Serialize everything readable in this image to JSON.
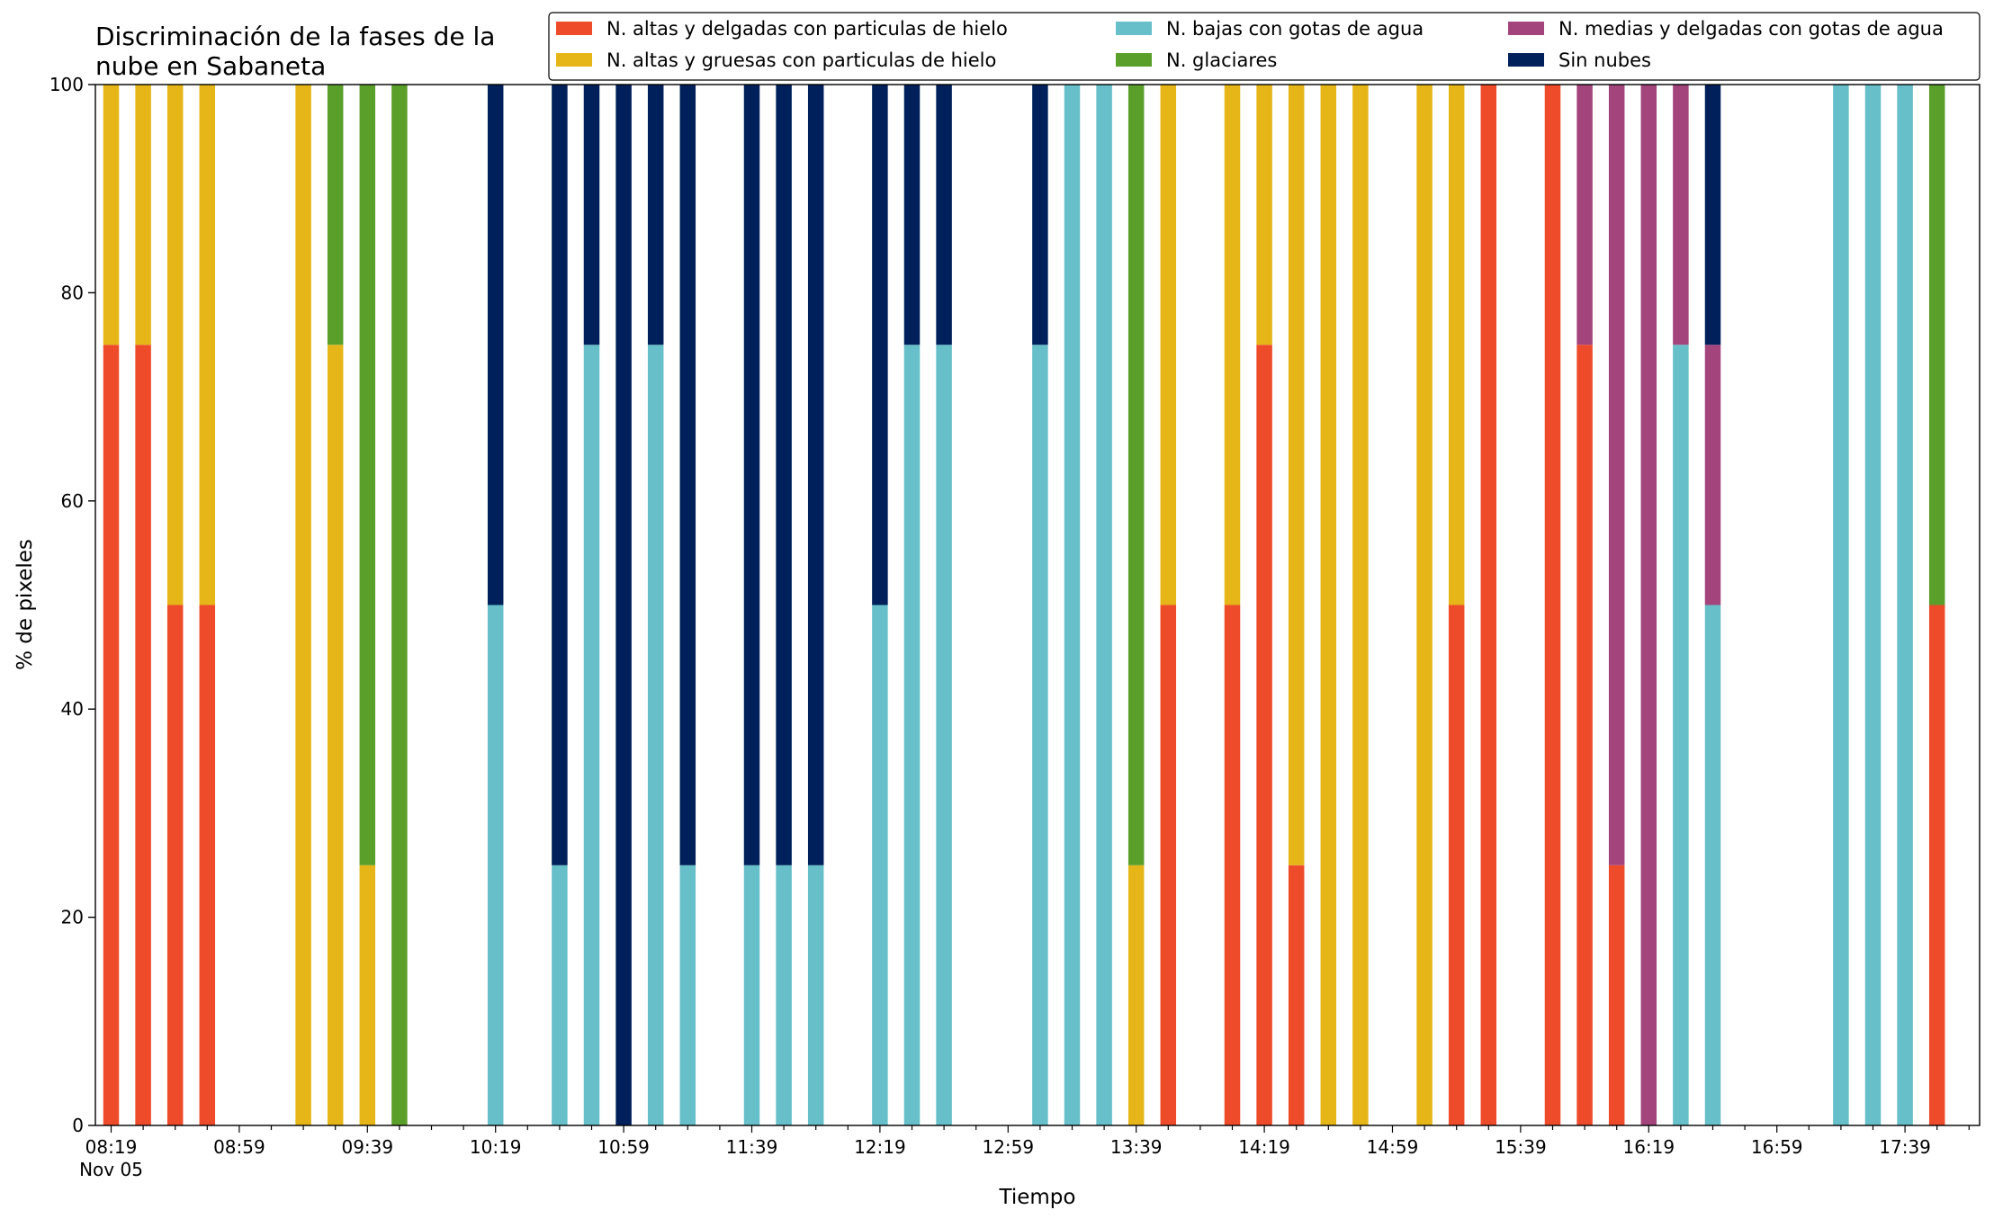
{
  "chart_data": {
    "type": "bar",
    "stacked": true,
    "title": "Discriminación de la fases de la\nnube en Sabaneta",
    "xlabel": "Tiempo",
    "ylabel": "% de pixeles",
    "ylim": [
      0,
      100
    ],
    "yticks": [
      0,
      20,
      40,
      60,
      80,
      100
    ],
    "x_start": "08:19",
    "x_step_minutes": 10,
    "x_slots": 59,
    "xtick_labels": [
      "08:19",
      "08:59",
      "09:39",
      "10:19",
      "10:59",
      "11:39",
      "12:19",
      "12:59",
      "13:39",
      "14:19",
      "14:59",
      "15:39",
      "16:19",
      "16:59",
      "17:39"
    ],
    "xtick_sublabel": "Nov 05",
    "legend_position": "top",
    "grid": false,
    "x": [
      "08:19",
      "08:29",
      "08:39",
      "08:49",
      "08:59",
      "09:09",
      "09:19",
      "09:29",
      "09:39",
      "09:49",
      "09:59",
      "10:09",
      "10:19",
      "10:29",
      "10:39",
      "10:49",
      "10:59",
      "11:09",
      "11:19",
      "11:29",
      "11:39",
      "11:49",
      "11:59",
      "12:09",
      "12:19",
      "12:29",
      "12:39",
      "12:49",
      "12:59",
      "13:09",
      "13:19",
      "13:29",
      "13:39",
      "13:49",
      "13:59",
      "14:09",
      "14:19",
      "14:29",
      "14:39",
      "14:49",
      "14:59",
      "15:09",
      "15:19",
      "15:29",
      "15:39",
      "15:49",
      "15:59",
      "16:09",
      "16:19",
      "16:29",
      "16:39",
      "16:49",
      "16:59",
      "17:09",
      "17:19",
      "17:29",
      "17:39",
      "17:49",
      "17:59"
    ],
    "series": [
      {
        "name": "N. altas y delgadas con particulas de hielo",
        "color": "#ee4b2b",
        "values": [
          75,
          75,
          50,
          50,
          0,
          0,
          0,
          0,
          0,
          0,
          0,
          0,
          0,
          0,
          0,
          0,
          0,
          0,
          0,
          0,
          0,
          0,
          0,
          0,
          0,
          0,
          0,
          0,
          0,
          0,
          0,
          0,
          0,
          50,
          0,
          50,
          75,
          25,
          0,
          0,
          0,
          0,
          50,
          100,
          0,
          100,
          75,
          25,
          0,
          0,
          0,
          0,
          0,
          0,
          0,
          0,
          0,
          50,
          0
        ]
      },
      {
        "name": "N. altas y gruesas con particulas de hielo",
        "color": "#e6b619",
        "values": [
          25,
          25,
          50,
          50,
          0,
          0,
          100,
          75,
          25,
          0,
          0,
          0,
          0,
          0,
          0,
          0,
          0,
          0,
          0,
          0,
          0,
          0,
          0,
          0,
          0,
          0,
          0,
          0,
          0,
          0,
          0,
          0,
          25,
          50,
          0,
          50,
          25,
          75,
          100,
          100,
          0,
          100,
          50,
          0,
          0,
          0,
          0,
          0,
          0,
          0,
          0,
          0,
          0,
          0,
          0,
          0,
          0,
          0,
          0
        ]
      },
      {
        "name": "N. bajas con gotas de agua",
        "color": "#66bfc9",
        "values": [
          0,
          0,
          0,
          0,
          0,
          0,
          0,
          0,
          0,
          0,
          0,
          0,
          50,
          0,
          25,
          75,
          0,
          75,
          25,
          0,
          25,
          25,
          25,
          0,
          50,
          75,
          75,
          0,
          0,
          75,
          100,
          100,
          0,
          0,
          0,
          0,
          0,
          0,
          0,
          0,
          0,
          0,
          0,
          0,
          0,
          0,
          0,
          0,
          0,
          75,
          50,
          0,
          0,
          0,
          100,
          100,
          100,
          0,
          0
        ]
      },
      {
        "name": "N. glaciares",
        "color": "#5b9f2b",
        "values": [
          0,
          0,
          0,
          0,
          0,
          0,
          0,
          25,
          75,
          100,
          0,
          0,
          0,
          0,
          0,
          0,
          0,
          0,
          0,
          0,
          0,
          0,
          0,
          0,
          0,
          0,
          0,
          0,
          0,
          0,
          0,
          0,
          75,
          0,
          0,
          0,
          0,
          0,
          0,
          0,
          0,
          0,
          0,
          0,
          0,
          0,
          0,
          0,
          0,
          0,
          0,
          0,
          0,
          0,
          0,
          0,
          0,
          50,
          0
        ]
      },
      {
        "name": "N. medias y delgadas con gotas de agua",
        "color": "#a3457c",
        "values": [
          0,
          0,
          0,
          0,
          0,
          0,
          0,
          0,
          0,
          0,
          0,
          0,
          0,
          0,
          0,
          0,
          0,
          0,
          0,
          0,
          0,
          0,
          0,
          0,
          0,
          0,
          0,
          0,
          0,
          0,
          0,
          0,
          0,
          0,
          0,
          0,
          0,
          0,
          0,
          0,
          0,
          0,
          0,
          0,
          0,
          0,
          25,
          75,
          100,
          25,
          25,
          0,
          0,
          0,
          0,
          0,
          0,
          0,
          0
        ]
      },
      {
        "name": "Sin nubes",
        "color": "#00205b",
        "values": [
          0,
          0,
          0,
          0,
          0,
          0,
          0,
          0,
          0,
          0,
          0,
          0,
          50,
          0,
          75,
          25,
          100,
          25,
          75,
          0,
          75,
          75,
          75,
          0,
          50,
          25,
          25,
          0,
          0,
          25,
          0,
          0,
          0,
          0,
          0,
          0,
          0,
          0,
          0,
          0,
          0,
          0,
          0,
          0,
          0,
          0,
          0,
          0,
          0,
          0,
          25,
          0,
          0,
          0,
          0,
          0,
          0,
          0,
          0
        ]
      }
    ],
    "legend_order": [
      0,
      1,
      2,
      3,
      4,
      5
    ]
  }
}
